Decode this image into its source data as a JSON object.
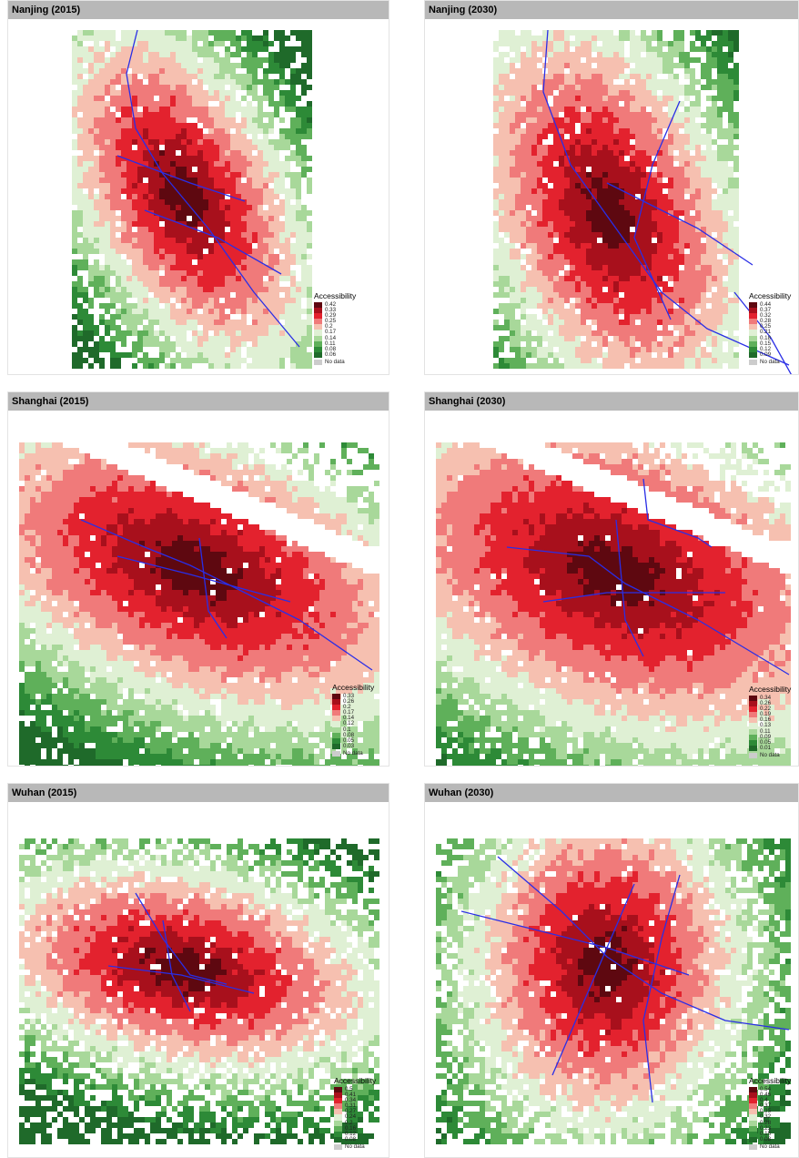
{
  "legend_title": "Accessibility",
  "no_data_label": "No data",
  "colors": {
    "panel_strip": "#b8b8b8",
    "no_data": "#cccccc",
    "transit_line": "#2a2ee6",
    "ramp": [
      "#5e0810",
      "#a8101c",
      "#e3222e",
      "#f07a7a",
      "#f6c0b0",
      "#dff0d4",
      "#a8d89a",
      "#5fb05a",
      "#2d8a37",
      "#1f6a2a"
    ]
  },
  "panels": [
    {
      "title": "Nanjing (2015)",
      "legend_values": [
        "0.42",
        "0.33",
        "0.29",
        "0.25",
        "0.2",
        "0.17",
        "0.14",
        "0.11",
        "0.08",
        "0.06"
      ]
    },
    {
      "title": "Nanjing (2030)",
      "legend_values": [
        "0.44",
        "0.37",
        "0.32",
        "0.28",
        "0.25",
        "0.21",
        "0.18",
        "0.15",
        "0.12",
        "0.09"
      ]
    },
    {
      "title": "Shanghai (2015)",
      "legend_values": [
        "0.33",
        "0.26",
        "0.2",
        "0.17",
        "0.14",
        "0.12",
        "0.1",
        "0.08",
        "0.05",
        "0.03"
      ]
    },
    {
      "title": "Shanghai (2030)",
      "legend_values": [
        "0.34",
        "0.26",
        "0.22",
        "0.19",
        "0.16",
        "0.13",
        "0.11",
        "0.09",
        "0.05",
        "0.01"
      ]
    },
    {
      "title": "Wuhan (2015)",
      "legend_values": [
        "0.5",
        "0.41",
        "0.34",
        "0.31",
        "0.27",
        "0.24",
        "0.2",
        "0.16",
        "0.12",
        "0.08"
      ]
    },
    {
      "title": "Wuhan (2030)",
      "legend_values": [
        "0.54",
        "0.46",
        "0.4",
        "0.37",
        "0.35",
        "0.32",
        "0.28",
        "0.23",
        "0.15",
        "0.08"
      ]
    }
  ]
}
